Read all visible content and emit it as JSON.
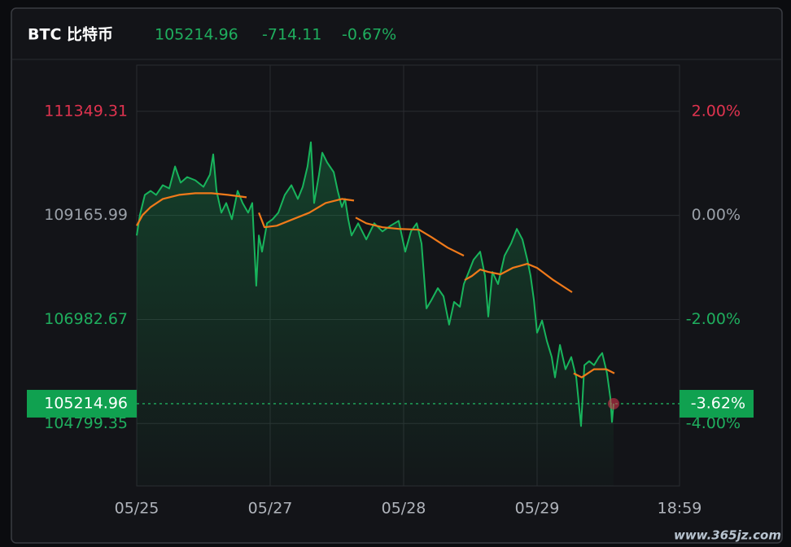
{
  "header": {
    "symbol": "BTC 比特币",
    "price": "105214.96",
    "change": "-714.11",
    "change_pct": "-0.67%"
  },
  "watermark": "www.365jz.com",
  "chart_data": {
    "type": "line",
    "xlim": [
      0,
      4.067
    ],
    "xticks": [
      {
        "value": 0,
        "label": "05/25"
      },
      {
        "value": 1,
        "label": "05/27"
      },
      {
        "value": 2,
        "label": "05/28"
      },
      {
        "value": 3,
        "label": "05/29"
      },
      {
        "value": 4.067,
        "label": "18:59"
      }
    ],
    "ylim": [
      103489,
      112319
    ],
    "yticks": [
      {
        "value": 111349.31,
        "label": "111349.31"
      },
      {
        "value": 109165.99,
        "label": "109165.99"
      },
      {
        "value": 106982.67,
        "label": "106982.67"
      },
      {
        "value": 104799.35,
        "label": "104799.35"
      }
    ],
    "ytick_colors": [
      "#e0334f",
      "#9aa0a8",
      "#1fae5e",
      "#1fae5e"
    ],
    "y2lim": [
      -5.2,
      2.888
    ],
    "y2ticks": [
      {
        "value": 2,
        "label": "2.00%"
      },
      {
        "value": 0,
        "label": "0.00%"
      },
      {
        "value": -2,
        "label": "-2.00%"
      },
      {
        "value": -4,
        "label": "-4.00%"
      }
    ],
    "grid": true,
    "last_price": {
      "value": 105214.96,
      "label": "105214.96"
    },
    "last_pct": {
      "value": -3.62,
      "label": "-3.62%"
    },
    "series": [
      {
        "color": "#18b45c",
        "area": true,
        "x": [
          0,
          0.024,
          0.061,
          0.104,
          0.146,
          0.195,
          0.244,
          0.287,
          0.329,
          0.378,
          0.439,
          0.5,
          0.549,
          0.573,
          0.598,
          0.634,
          0.671,
          0.713,
          0.756,
          0.793,
          0.835,
          0.866,
          0.896,
          0.915,
          0.939,
          0.976,
          1.018,
          1.061,
          1.11,
          1.159,
          1.207,
          1.244,
          1.28,
          1.305,
          1.329,
          1.366,
          1.39,
          1.427,
          1.476,
          1.506,
          1.537,
          1.561,
          1.585,
          1.61,
          1.659,
          1.72,
          1.78,
          1.841,
          1.902,
          1.963,
          2.012,
          2.055,
          2.098,
          2.134,
          2.171,
          2.207,
          2.256,
          2.299,
          2.341,
          2.378,
          2.421,
          2.451,
          2.488,
          2.524,
          2.573,
          2.61,
          2.634,
          2.665,
          2.707,
          2.756,
          2.805,
          2.848,
          2.89,
          2.927,
          2.951,
          2.976,
          3,
          3.037,
          3.073,
          3.11,
          3.134,
          3.171,
          3.213,
          3.256,
          3.293,
          3.329,
          3.354,
          3.39,
          3.427,
          3.463,
          3.488,
          3.524,
          3.549,
          3.561,
          3.573
        ],
        "values": [
          108745,
          109171,
          109596,
          109681,
          109596,
          109800,
          109732,
          110192,
          109852,
          109971,
          109903,
          109766,
          110022,
          110447,
          109681,
          109222,
          109426,
          109086,
          109681,
          109426,
          109222,
          109426,
          107690,
          108745,
          108405,
          109001,
          109086,
          109222,
          109596,
          109800,
          109511,
          109766,
          110192,
          110702,
          109426,
          110022,
          110481,
          110277,
          110073,
          109681,
          109341,
          109511,
          109086,
          108745,
          109001,
          108660,
          109001,
          108830,
          108950,
          109052,
          108405,
          108830,
          109001,
          108575,
          107214,
          107384,
          107639,
          107469,
          106874,
          107350,
          107248,
          107724,
          107980,
          108235,
          108405,
          107895,
          107044,
          107980,
          107724,
          108320,
          108575,
          108882,
          108660,
          108235,
          107895,
          107384,
          106703,
          106959,
          106533,
          106193,
          105767,
          106448,
          105938,
          106193,
          105767,
          104746,
          106023,
          106108,
          106023,
          106193,
          106278,
          105852,
          105342,
          104831,
          105214.96
        ]
      },
      {
        "color": "#f07a1a",
        "area": false,
        "x": [
          0,
          0.043,
          0.104,
          0.195,
          0.317,
          0.439,
          0.561,
          0.683,
          0.823,
          0.87,
          0.915,
          0.957,
          1.049,
          1.171,
          1.293,
          1.415,
          1.537,
          1.628,
          1.634,
          1.64,
          1.72,
          1.841,
          1.963,
          2.116,
          2.207,
          2.329,
          2.451,
          2.451,
          2.457,
          2.512,
          2.573,
          2.634,
          2.726,
          2.817,
          2.927,
          3,
          3.122,
          3.262,
          3.268,
          3.274,
          3.335,
          3.427,
          3.518,
          3.579
        ],
        "values": [
          108950,
          109171,
          109341,
          109511,
          109596,
          109630,
          109630,
          109596,
          109545,
          null,
          109222,
          108916,
          108950,
          109086,
          109222,
          109426,
          109511,
          109477,
          null,
          109120,
          109001,
          108916,
          108882,
          108865,
          108711,
          108490,
          108320,
          null,
          107809,
          107895,
          108031,
          107980,
          107929,
          108065,
          108150,
          108065,
          107809,
          107554,
          null,
          105852,
          105767,
          105938,
          105938,
          105852
        ]
      }
    ]
  }
}
